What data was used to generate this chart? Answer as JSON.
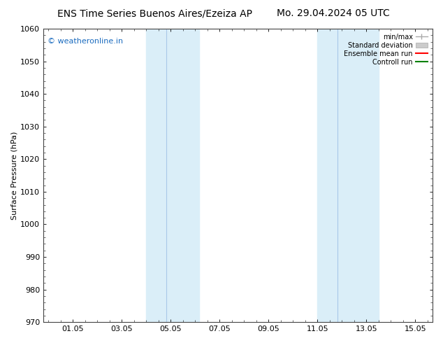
{
  "title_left": "ENS Time Series Buenos Aires/Ezeiza AP",
  "title_right": "Mo. 29.04.2024 05 UTC",
  "ylabel": "Surface Pressure (hPa)",
  "ylim": [
    970,
    1060
  ],
  "yticks": [
    970,
    980,
    990,
    1000,
    1010,
    1020,
    1030,
    1040,
    1050,
    1060
  ],
  "xlim": [
    -0.2,
    15.7
  ],
  "xtick_labels": [
    "01.05",
    "03.05",
    "05.05",
    "07.05",
    "09.05",
    "11.05",
    "13.05",
    "15.05"
  ],
  "xtick_positions": [
    1,
    3,
    5,
    7,
    9,
    11,
    13,
    15
  ],
  "shaded_regions": [
    {
      "xmin": 4.0,
      "xmax": 4.83,
      "color": "#d8edf8"
    },
    {
      "xmin": 4.83,
      "xmax": 6.16,
      "color": "#ddeef9"
    },
    {
      "xmin": 11.0,
      "xmax": 11.83,
      "color": "#d8edf8"
    },
    {
      "xmin": 11.83,
      "xmax": 13.5,
      "color": "#ddeef9"
    }
  ],
  "shaded_color": "#daeef8",
  "divider_color": "#a8c8e8",
  "background_color": "#ffffff",
  "watermark_text": "© weatheronline.in",
  "watermark_color": "#1a6bbf",
  "watermark_fontsize": 8,
  "title_fontsize": 10,
  "tick_fontsize": 8,
  "ylabel_fontsize": 8,
  "spine_color": "#444444",
  "spine_lw": 0.8
}
